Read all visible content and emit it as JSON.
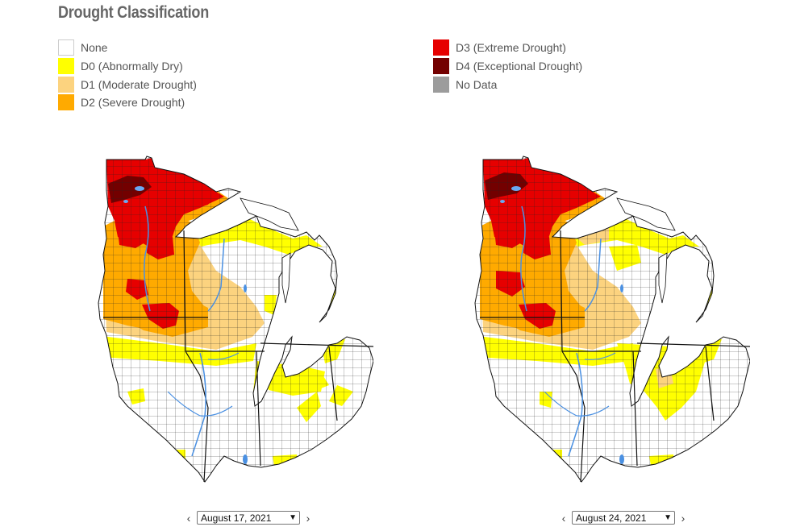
{
  "title": "Drought Classification",
  "legend": {
    "left": [
      {
        "label": "None",
        "color": "#ffffff",
        "icon": "none-swatch"
      },
      {
        "label": "D0 (Abnormally Dry)",
        "color": "#ffff00",
        "icon": "d0-swatch"
      },
      {
        "label": "D1 (Moderate Drought)",
        "color": "#fcd37f",
        "icon": "d1-swatch"
      },
      {
        "label": "D2 (Severe Drought)",
        "color": "#ffaa00",
        "icon": "d2-swatch"
      }
    ],
    "right": [
      {
        "label": "D3 (Extreme Drought)",
        "color": "#e60000",
        "icon": "d3-swatch"
      },
      {
        "label": "D4 (Exceptional Drought)",
        "color": "#730000",
        "icon": "d4-swatch"
      },
      {
        "label": "No Data",
        "color": "#9c9c9c",
        "icon": "no-data-swatch"
      }
    ]
  },
  "maps": {
    "left": {
      "date": "August 17, 2021"
    },
    "right": {
      "date": "August 24, 2021"
    }
  },
  "controls": {
    "prev_icon": "chevron-left-icon",
    "next_icon": "chevron-right-icon"
  }
}
